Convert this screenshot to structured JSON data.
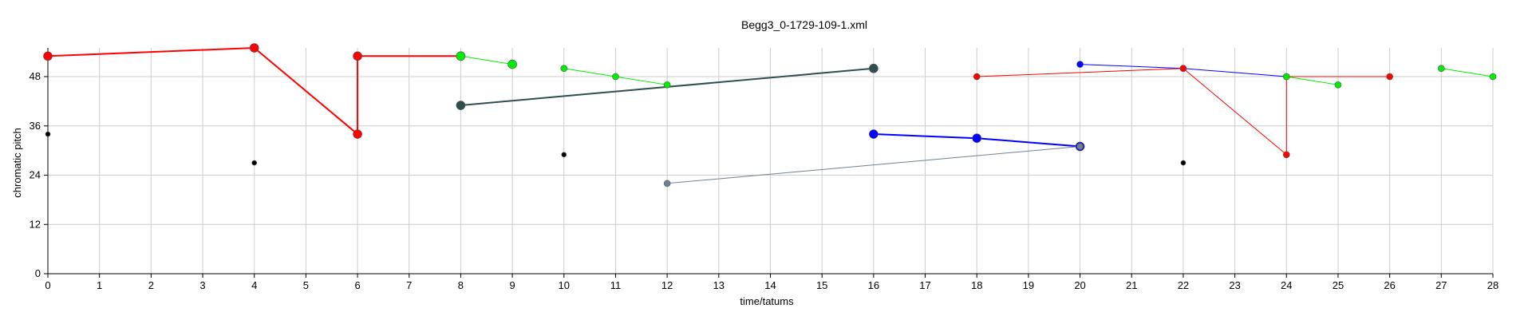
{
  "chart_data": {
    "type": "scatter",
    "title": "Begg3_0-1729-109-1.xml",
    "xlabel": "time/tatums",
    "ylabel": "chromatic pitch",
    "xlim": [
      0,
      28
    ],
    "ylim": [
      0,
      55
    ],
    "x_ticks": [
      0,
      1,
      2,
      3,
      4,
      5,
      6,
      7,
      8,
      9,
      10,
      11,
      12,
      13,
      14,
      15,
      16,
      17,
      18,
      19,
      20,
      21,
      22,
      23,
      24,
      25,
      26,
      27,
      28
    ],
    "y_ticks": [
      0,
      12,
      24,
      36,
      48
    ],
    "grid": true,
    "series": [
      {
        "color": "#ff0000",
        "width": 2,
        "r": 5.5,
        "points": [
          [
            0,
            53
          ],
          [
            4,
            55
          ],
          [
            6,
            34
          ],
          [
            6,
            53
          ],
          [
            8,
            53
          ]
        ],
        "segments": [
          [
            0,
            1
          ],
          [
            1,
            2
          ],
          [
            2,
            3
          ],
          [
            3,
            4
          ]
        ]
      },
      {
        "color": "#00ee00",
        "width": 1,
        "r": 5.5,
        "points": [
          [
            8,
            53
          ],
          [
            9,
            51
          ]
        ],
        "segments": [
          [
            0,
            1
          ]
        ]
      },
      {
        "color": "#00ee00",
        "width": 1,
        "r": 4,
        "points": [
          [
            10,
            50
          ],
          [
            11,
            48
          ],
          [
            12,
            46
          ]
        ],
        "segments": [
          [
            0,
            1
          ],
          [
            1,
            2
          ]
        ]
      },
      {
        "color": "#2f4f4f",
        "width": 2,
        "r": 5.5,
        "points": [
          [
            8,
            41
          ],
          [
            16,
            50
          ]
        ],
        "segments": [
          [
            0,
            1
          ]
        ]
      },
      {
        "color": "#0000ff",
        "width": 2,
        "r": 5.5,
        "points": [
          [
            16,
            34
          ],
          [
            18,
            33
          ],
          [
            20,
            31
          ]
        ],
        "segments": [
          [
            0,
            1
          ],
          [
            1,
            2
          ]
        ]
      },
      {
        "color": "#708090",
        "width": 1,
        "r": 4,
        "points": [
          [
            12,
            22
          ],
          [
            20,
            31
          ]
        ],
        "segments": [
          [
            0,
            1
          ]
        ]
      },
      {
        "color": "#0000ff",
        "width": 1,
        "r": 4,
        "points": [
          [
            20,
            51
          ],
          [
            22,
            50
          ],
          [
            24,
            48
          ]
        ],
        "segments": [
          [
            0,
            1
          ],
          [
            1,
            2
          ]
        ]
      },
      {
        "color": "#ff0000",
        "width": 1,
        "r": 4,
        "points": [
          [
            18,
            48
          ],
          [
            22,
            50
          ],
          [
            24,
            29
          ],
          [
            24,
            48
          ],
          [
            26,
            48
          ]
        ],
        "segments": [
          [
            0,
            1
          ],
          [
            1,
            2
          ],
          [
            2,
            3
          ],
          [
            3,
            4
          ]
        ]
      },
      {
        "color": "#00ee00",
        "width": 1,
        "r": 4,
        "points": [
          [
            24,
            48
          ],
          [
            25,
            46
          ]
        ],
        "segments": [
          [
            0,
            1
          ]
        ]
      },
      {
        "color": "#00ee00",
        "width": 1,
        "r": 4,
        "points": [
          [
            27,
            50
          ],
          [
            28,
            48
          ]
        ],
        "segments": [
          [
            0,
            1
          ]
        ]
      },
      {
        "color": "#000000",
        "width": 0,
        "r": 3,
        "points": [
          [
            0,
            34
          ],
          [
            4,
            27
          ],
          [
            10,
            29
          ],
          [
            22,
            27
          ]
        ],
        "segments": []
      }
    ]
  }
}
